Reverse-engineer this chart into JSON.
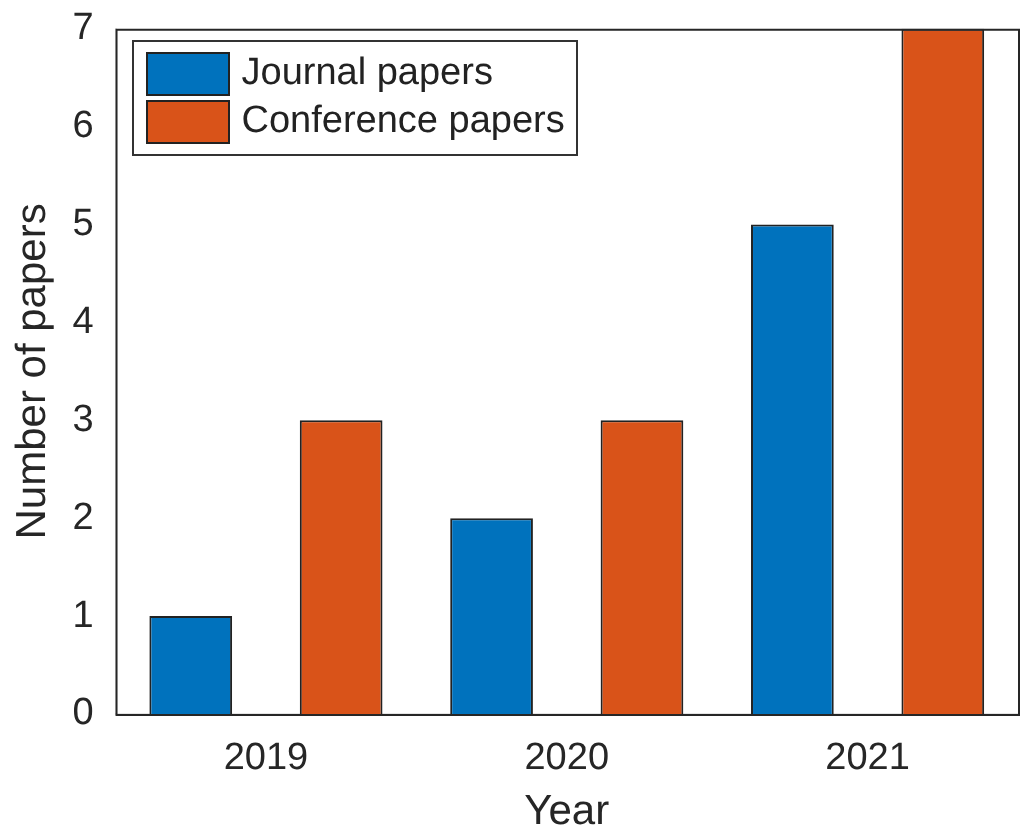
{
  "chart_data": {
    "type": "bar",
    "xlabel": "Year",
    "ylabel": "Number of papers",
    "categories": [
      "2019",
      "2020",
      "2021"
    ],
    "series": [
      {
        "name": "Journal papers",
        "color": "#0072bd",
        "values": [
          1,
          2,
          5
        ]
      },
      {
        "name": "Conference papers",
        "color": "#d95319",
        "values": [
          3,
          3,
          7
        ]
      }
    ],
    "ylim": [
      0,
      7
    ],
    "yticks": [
      0,
      1,
      2,
      3,
      4,
      5,
      6,
      7
    ],
    "grid": false,
    "legend": "top left"
  }
}
